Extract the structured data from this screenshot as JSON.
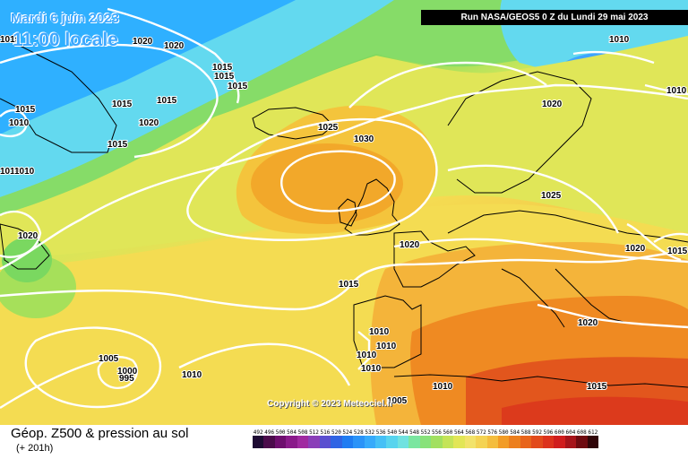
{
  "header": {
    "date": "Mardi 6 juin 2023",
    "time": "11:00 locale",
    "run": "Run NASA/GEOS5 0 Z du Lundi 29 mai 2023"
  },
  "copyright": "Copyright © 2023 Meteociel.fr",
  "footer": {
    "product": "Géop. Z500 & pression au sol",
    "step": "(+ 201h)"
  },
  "colors": {
    "ocean_cold": "#2aa3ff",
    "cyan": "#63d9ef",
    "green": "#7ad860",
    "yellow_green": "#d2e85a",
    "yellow": "#f4dc52",
    "orange": "#f49b1c",
    "red": "#e0401f",
    "isobar": "#ffffff"
  },
  "scale": {
    "values": [
      "492",
      "496",
      "500",
      "504",
      "508",
      "512",
      "516",
      "520",
      "524",
      "528",
      "532",
      "536",
      "540",
      "544",
      "548",
      "552",
      "556",
      "560",
      "564",
      "568",
      "572",
      "576",
      "580",
      "584",
      "588",
      "592",
      "596",
      "600",
      "604",
      "608",
      "612"
    ],
    "colors": [
      "#1e0b33",
      "#4b0b4b",
      "#6e0e6e",
      "#8a1a8a",
      "#a02aa0",
      "#8a3fb8",
      "#5a4fd0",
      "#2f64e4",
      "#1f7cf2",
      "#2a93f8",
      "#36aafb",
      "#45c0f6",
      "#58d4ee",
      "#70e2e0",
      "#7ae6a0",
      "#88e27a",
      "#a2e060",
      "#c4e458",
      "#e2e656",
      "#f2e36a",
      "#f4d353",
      "#f4bd3e",
      "#f29c26",
      "#ec7f1d",
      "#e8641a",
      "#e24a1b",
      "#dc321c",
      "#d01d1d",
      "#a6141a",
      "#6e0a10",
      "#300508"
    ]
  },
  "isobar_labels": [
    {
      "text": "1015"
    },
    {
      "text": "1020"
    },
    {
      "text": "1020"
    },
    {
      "text": "1015"
    },
    {
      "text": "1015"
    },
    {
      "text": "1010"
    },
    {
      "text": "1015"
    },
    {
      "text": "1015"
    },
    {
      "text": "1020"
    },
    {
      "text": "1015"
    },
    {
      "text": "1015"
    },
    {
      "text": "1010"
    },
    {
      "text": "1010"
    },
    {
      "text": "1010"
    },
    {
      "text": "1025"
    },
    {
      "text": "1030"
    },
    {
      "text": "1020"
    },
    {
      "text": "1020"
    },
    {
      "text": "1025"
    },
    {
      "text": "1015"
    },
    {
      "text": "1010"
    },
    {
      "text": "1015"
    },
    {
      "text": "1020"
    },
    {
      "text": "1015"
    },
    {
      "text": "1015"
    },
    {
      "text": "1010"
    },
    {
      "text": "1010"
    },
    {
      "text": "1010"
    },
    {
      "text": "1010"
    },
    {
      "text": "1005"
    },
    {
      "text": "1000"
    },
    {
      "text": "995"
    },
    {
      "text": "1010"
    },
    {
      "text": "1010"
    },
    {
      "text": "1020"
    },
    {
      "text": "1015"
    },
    {
      "text": "1020"
    },
    {
      "text": "1005"
    }
  ]
}
